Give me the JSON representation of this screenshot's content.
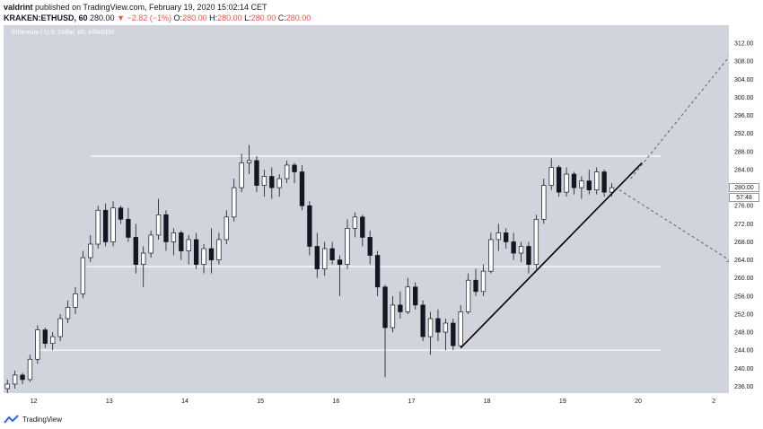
{
  "header": {
    "author": "valdrint",
    "published_text": "published on TradingView.com, February 19, 2020 15:02:14 CET",
    "symbol": "KRAKEN:ETHUSD, 60",
    "last": "280.00",
    "change": "▼ −2.82 (−1%)",
    "o_label": "O:",
    "o_value": "280.00",
    "h_label": "H:",
    "h_value": "280.00",
    "l_label": "L:",
    "l_value": "280.00",
    "c_label": "C:",
    "c_value": "280.00"
  },
  "chart": {
    "title": "Ethereum / U.S. Dollar, 60, KRAKEN",
    "price_tag": "280.00",
    "countdown_tag": "57:48"
  },
  "chart_data": {
    "type": "candlestick",
    "x_ticks": [
      "12",
      "13",
      "14",
      "15",
      "16",
      "17",
      "18",
      "19",
      "20",
      "2"
    ],
    "y_ticks": [
      "312.00",
      "308.00",
      "304.00",
      "300.00",
      "296.00",
      "292.00",
      "288.00",
      "284.00",
      "280.00",
      "276.00",
      "272.00",
      "268.00",
      "264.00",
      "260.00",
      "256.00",
      "252.00",
      "248.00",
      "244.00",
      "240.00",
      "236.00"
    ],
    "ylim": [
      234.5,
      316
    ],
    "xlim": [
      11.6,
      21.2
    ],
    "background_color": "#d1d4dc",
    "line_color": "#ffffff",
    "series": [
      {
        "x": 11.65,
        "o": 235.5,
        "h": 237.5,
        "l": 234.5,
        "c": 236.5
      },
      {
        "x": 11.75,
        "o": 236.5,
        "h": 239.5,
        "l": 235.5,
        "c": 238.5
      },
      {
        "x": 11.85,
        "o": 238.5,
        "h": 239,
        "l": 236.5,
        "c": 237.5
      },
      {
        "x": 11.95,
        "o": 237.5,
        "h": 243,
        "l": 237,
        "c": 242
      },
      {
        "x": 12.05,
        "o": 242,
        "h": 249.5,
        "l": 241,
        "c": 248.5
      },
      {
        "x": 12.15,
        "o": 248.5,
        "h": 249,
        "l": 244.5,
        "c": 245.5
      },
      {
        "x": 12.25,
        "o": 245.5,
        "h": 248,
        "l": 244,
        "c": 247
      },
      {
        "x": 12.35,
        "o": 247,
        "h": 252,
        "l": 246,
        "c": 251
      },
      {
        "x": 12.45,
        "o": 251,
        "h": 255,
        "l": 250,
        "c": 253.5
      },
      {
        "x": 12.55,
        "o": 253.5,
        "h": 258,
        "l": 252,
        "c": 256.5
      },
      {
        "x": 12.65,
        "o": 256.5,
        "h": 266,
        "l": 255.5,
        "c": 264.5
      },
      {
        "x": 12.75,
        "o": 264.5,
        "h": 269.5,
        "l": 263.5,
        "c": 267.5
      },
      {
        "x": 12.85,
        "o": 267.5,
        "h": 276,
        "l": 266.5,
        "c": 275
      },
      {
        "x": 12.95,
        "o": 275,
        "h": 276.5,
        "l": 267,
        "c": 268
      },
      {
        "x": 13.05,
        "o": 268,
        "h": 277,
        "l": 267,
        "c": 275.5
      },
      {
        "x": 13.15,
        "o": 275.5,
        "h": 276,
        "l": 272,
        "c": 273
      },
      {
        "x": 13.25,
        "o": 273,
        "h": 275.5,
        "l": 268,
        "c": 269
      },
      {
        "x": 13.35,
        "o": 269,
        "h": 272,
        "l": 261,
        "c": 263
      },
      {
        "x": 13.45,
        "o": 263,
        "h": 267,
        "l": 258,
        "c": 265.5
      },
      {
        "x": 13.55,
        "o": 265.5,
        "h": 270.5,
        "l": 264.5,
        "c": 269.5
      },
      {
        "x": 13.65,
        "o": 269.5,
        "h": 277.5,
        "l": 268.5,
        "c": 274
      },
      {
        "x": 13.75,
        "o": 274,
        "h": 275,
        "l": 266,
        "c": 268
      },
      {
        "x": 13.85,
        "o": 268,
        "h": 271,
        "l": 265,
        "c": 270
      },
      {
        "x": 13.95,
        "o": 270,
        "h": 270.5,
        "l": 264,
        "c": 266
      },
      {
        "x": 14.05,
        "o": 266,
        "h": 269.5,
        "l": 263,
        "c": 268.5
      },
      {
        "x": 14.15,
        "o": 268.5,
        "h": 270,
        "l": 262,
        "c": 263
      },
      {
        "x": 14.25,
        "o": 263,
        "h": 267.5,
        "l": 261,
        "c": 266.5
      },
      {
        "x": 14.35,
        "o": 266.5,
        "h": 271,
        "l": 261,
        "c": 264
      },
      {
        "x": 14.45,
        "o": 264,
        "h": 270,
        "l": 263,
        "c": 268.5
      },
      {
        "x": 14.55,
        "o": 268.5,
        "h": 275,
        "l": 267.5,
        "c": 273.5
      },
      {
        "x": 14.65,
        "o": 273.5,
        "h": 282,
        "l": 272.5,
        "c": 280
      },
      {
        "x": 14.75,
        "o": 280,
        "h": 287.5,
        "l": 279,
        "c": 285.5
      },
      {
        "x": 14.85,
        "o": 285.5,
        "h": 289.5,
        "l": 283,
        "c": 286
      },
      {
        "x": 14.95,
        "o": 286,
        "h": 287,
        "l": 279,
        "c": 280.5
      },
      {
        "x": 15.05,
        "o": 280.5,
        "h": 284,
        "l": 278,
        "c": 282.5
      },
      {
        "x": 15.15,
        "o": 282.5,
        "h": 284.5,
        "l": 277.5,
        "c": 280
      },
      {
        "x": 15.25,
        "o": 280,
        "h": 283,
        "l": 278,
        "c": 282
      },
      {
        "x": 15.35,
        "o": 282,
        "h": 286,
        "l": 281,
        "c": 285
      },
      {
        "x": 15.45,
        "o": 285,
        "h": 285.5,
        "l": 281,
        "c": 283.5
      },
      {
        "x": 15.55,
        "o": 283.5,
        "h": 285,
        "l": 275,
        "c": 276
      },
      {
        "x": 15.65,
        "o": 276,
        "h": 277,
        "l": 265,
        "c": 267
      },
      {
        "x": 15.75,
        "o": 267,
        "h": 270,
        "l": 260,
        "c": 262
      },
      {
        "x": 15.85,
        "o": 262,
        "h": 268,
        "l": 260.5,
        "c": 266.5
      },
      {
        "x": 15.95,
        "o": 266.5,
        "h": 268,
        "l": 263,
        "c": 264
      },
      {
        "x": 16.05,
        "o": 264,
        "h": 265,
        "l": 256,
        "c": 263
      },
      {
        "x": 16.15,
        "o": 263,
        "h": 273,
        "l": 262,
        "c": 271
      },
      {
        "x": 16.25,
        "o": 271,
        "h": 274.5,
        "l": 269,
        "c": 273.5
      },
      {
        "x": 16.35,
        "o": 273.5,
        "h": 274,
        "l": 267,
        "c": 269
      },
      {
        "x": 16.45,
        "o": 269,
        "h": 270.5,
        "l": 263,
        "c": 265
      },
      {
        "x": 16.55,
        "o": 265,
        "h": 266,
        "l": 256,
        "c": 258
      },
      {
        "x": 16.65,
        "o": 258,
        "h": 258.5,
        "l": 238,
        "c": 249
      },
      {
        "x": 16.75,
        "o": 249,
        "h": 256,
        "l": 248,
        "c": 254
      },
      {
        "x": 16.85,
        "o": 254,
        "h": 257,
        "l": 251,
        "c": 252.5
      },
      {
        "x": 16.95,
        "o": 252.5,
        "h": 260,
        "l": 252,
        "c": 258
      },
      {
        "x": 17.05,
        "o": 258,
        "h": 259,
        "l": 253,
        "c": 254
      },
      {
        "x": 17.15,
        "o": 254,
        "h": 255,
        "l": 246,
        "c": 247
      },
      {
        "x": 17.25,
        "o": 247,
        "h": 252.5,
        "l": 243,
        "c": 251
      },
      {
        "x": 17.35,
        "o": 251,
        "h": 253,
        "l": 246,
        "c": 248
      },
      {
        "x": 17.45,
        "o": 248,
        "h": 251,
        "l": 244,
        "c": 250
      },
      {
        "x": 17.55,
        "o": 250,
        "h": 251,
        "l": 244,
        "c": 245
      },
      {
        "x": 17.65,
        "o": 245,
        "h": 254,
        "l": 244.5,
        "c": 252.5
      },
      {
        "x": 17.75,
        "o": 252.5,
        "h": 261,
        "l": 252,
        "c": 259.5
      },
      {
        "x": 17.85,
        "o": 259.5,
        "h": 262,
        "l": 256,
        "c": 257
      },
      {
        "x": 17.95,
        "o": 257,
        "h": 263,
        "l": 256,
        "c": 261.5
      },
      {
        "x": 18.05,
        "o": 261.5,
        "h": 270,
        "l": 261,
        "c": 268.5
      },
      {
        "x": 18.15,
        "o": 268.5,
        "h": 272,
        "l": 266,
        "c": 270
      },
      {
        "x": 18.25,
        "o": 270,
        "h": 271,
        "l": 266.5,
        "c": 268
      },
      {
        "x": 18.35,
        "o": 268,
        "h": 270,
        "l": 264,
        "c": 265.5
      },
      {
        "x": 18.45,
        "o": 265.5,
        "h": 268,
        "l": 263.5,
        "c": 267
      },
      {
        "x": 18.55,
        "o": 267,
        "h": 268,
        "l": 261,
        "c": 263
      },
      {
        "x": 18.65,
        "o": 263,
        "h": 274,
        "l": 262,
        "c": 273
      },
      {
        "x": 18.75,
        "o": 273,
        "h": 282,
        "l": 272,
        "c": 280.5
      },
      {
        "x": 18.85,
        "o": 280.5,
        "h": 286.5,
        "l": 279.5,
        "c": 284.5
      },
      {
        "x": 18.95,
        "o": 284.5,
        "h": 285,
        "l": 278,
        "c": 279
      },
      {
        "x": 19.05,
        "o": 279,
        "h": 284.5,
        "l": 278,
        "c": 283
      },
      {
        "x": 19.15,
        "o": 283,
        "h": 283.5,
        "l": 278.5,
        "c": 280
      },
      {
        "x": 19.25,
        "o": 280,
        "h": 282.5,
        "l": 277.5,
        "c": 281.5
      },
      {
        "x": 19.35,
        "o": 281.5,
        "h": 284,
        "l": 278.5,
        "c": 279.5
      },
      {
        "x": 19.45,
        "o": 279.5,
        "h": 284.5,
        "l": 278.5,
        "c": 283.5
      },
      {
        "x": 19.55,
        "o": 283.5,
        "h": 284,
        "l": 278,
        "c": 279
      },
      {
        "x": 19.65,
        "o": 279,
        "h": 281,
        "l": 278,
        "c": 280
      }
    ],
    "levels": [
      287,
      262.5,
      244
    ],
    "trendline": {
      "from": [
        17.65,
        244.5
      ],
      "to": [
        20.05,
        285.5
      ]
    },
    "projection_up": {
      "from": [
        19.9,
        282
      ],
      "to": [
        21.3,
        311
      ]
    },
    "projection_down": {
      "from": [
        19.75,
        279.5
      ],
      "to": [
        21.25,
        263.5
      ]
    }
  },
  "footer": {
    "brand": "TradingView"
  }
}
